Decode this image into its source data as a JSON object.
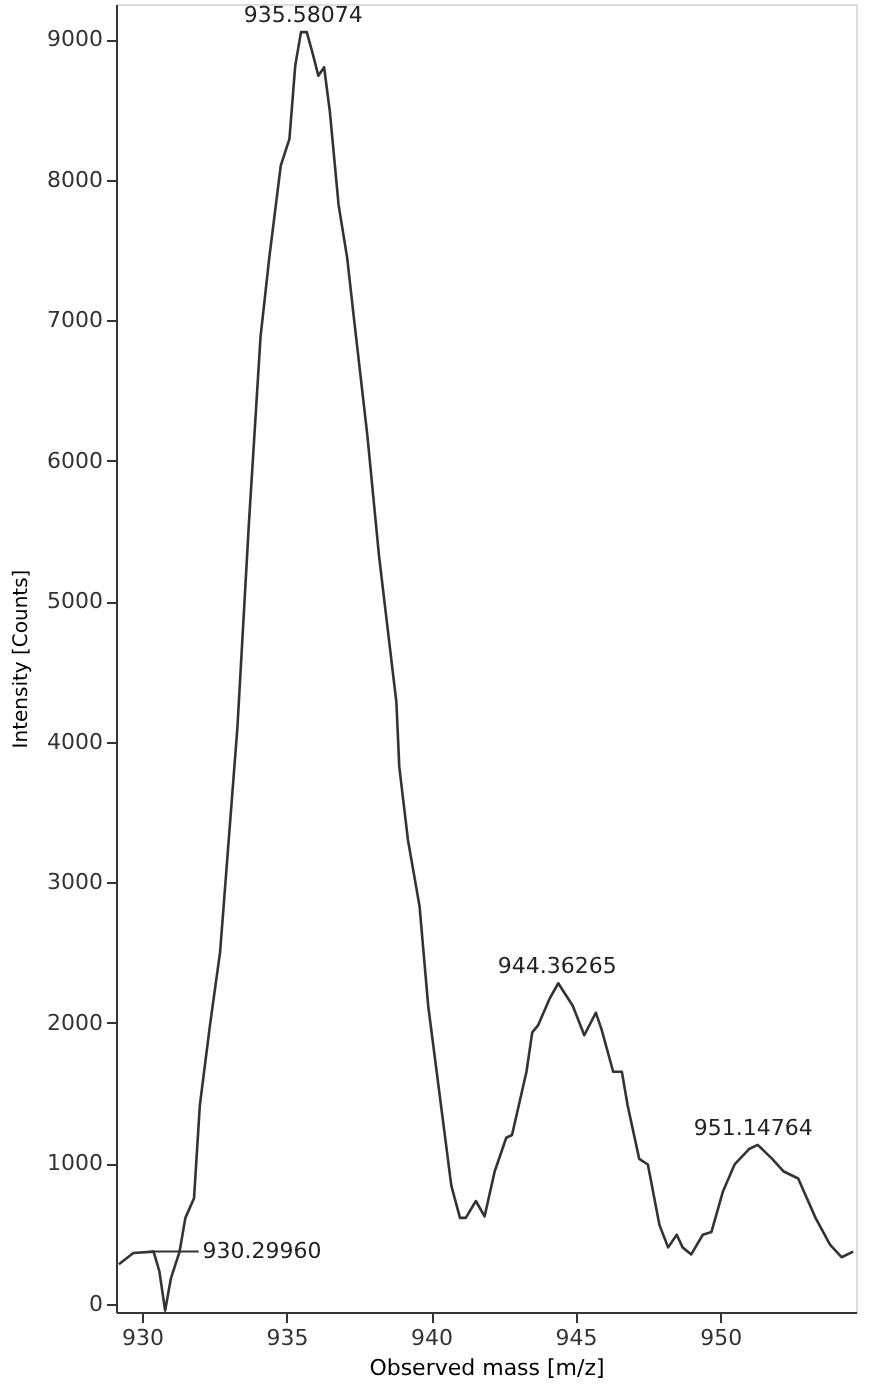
{
  "chart_data": {
    "type": "line",
    "xlabel": "Observed mass [m/z]",
    "ylabel": "Intensity [Counts]",
    "xlim": [
      929.1,
      954.7
    ],
    "ylim": [
      -60,
      9250
    ],
    "xticks": [
      930,
      935,
      940,
      945,
      950
    ],
    "yticks": [
      0,
      1000,
      2000,
      3000,
      4000,
      5000,
      6000,
      7000,
      8000,
      9000
    ],
    "grid": false,
    "marker": "none",
    "line_style": "solid",
    "series": [
      {
        "color": "#333333",
        "x": [
          929.2,
          929.7,
          930.4,
          930.6,
          930.8,
          931.0,
          931.3,
          931.5,
          931.8,
          932.0,
          932.35,
          932.7,
          933.0,
          933.3,
          933.7,
          934.1,
          934.4,
          934.8,
          935.1,
          935.3,
          935.5,
          935.7,
          935.9,
          936.1,
          936.3,
          936.5,
          936.8,
          937.1,
          937.3,
          937.8,
          938.2,
          938.8,
          938.9,
          939.2,
          939.6,
          939.9,
          940.4,
          940.7,
          941.0,
          941.2,
          941.55,
          941.85,
          942.2,
          942.6,
          942.8,
          943.3,
          943.5,
          943.7,
          944.1,
          944.4,
          944.9,
          945.3,
          945.7,
          945.9,
          946.3,
          946.6,
          946.8,
          947.2,
          947.5,
          947.9,
          948.2,
          948.5,
          948.7,
          949.0,
          949.4,
          949.7,
          950.1,
          950.5,
          951.0,
          951.3,
          951.8,
          952.2,
          952.7,
          953.3,
          953.8,
          954.2,
          954.6
        ],
        "values": [
          280,
          360,
          370,
          230,
          -50,
          180,
          370,
          610,
          750,
          1410,
          1980,
          2500,
          3300,
          4100,
          5560,
          6880,
          7440,
          8100,
          8290,
          8810,
          9050,
          9050,
          8900,
          8740,
          8800,
          8480,
          7820,
          7440,
          7070,
          6170,
          5320,
          4280,
          3820,
          3300,
          2830,
          2120,
          1320,
          840,
          610,
          610,
          730,
          620,
          940,
          1180,
          1200,
          1650,
          1930,
          1980,
          2170,
          2280,
          2120,
          1910,
          2070,
          1950,
          1650,
          1650,
          1410,
          1030,
          990,
          560,
          400,
          490,
          400,
          350,
          490,
          510,
          800,
          990,
          1100,
          1130,
          1030,
          940,
          890,
          610,
          420,
          330,
          370
        ]
      }
    ],
    "annotations": [
      {
        "text": "935.58074",
        "x": 935.58074,
        "y": 9050
      },
      {
        "text": "944.36265",
        "x": 944.36265,
        "y": 2280
      },
      {
        "text": "951.14764",
        "x": 951.14764,
        "y": 1130
      },
      {
        "text": "930.29960",
        "x": 930.2996,
        "y": 370
      }
    ]
  }
}
